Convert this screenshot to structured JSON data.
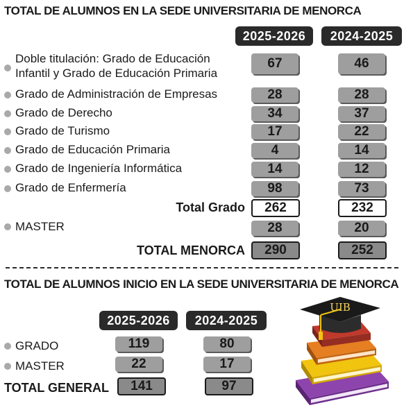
{
  "chart_data": [
    {
      "type": "table",
      "title": "TOTAL DE ALUMNOS EN LA SEDE UNIVERSITARIA DE MENORCA",
      "columns": [
        "2025-2026",
        "2024-2025"
      ],
      "rows": [
        {
          "label": "Doble titulación: Grado de Educación Infantil y Grado de Educación Primaria",
          "label_line1": "Doble titulación: Grado de Educación",
          "label_line2": "Infantil y Grado de Educación Primaria",
          "values": [
            67,
            46
          ]
        },
        {
          "label": "Grado de Administración de Empresas",
          "values": [
            28,
            28
          ]
        },
        {
          "label": "Grado de Derecho",
          "values": [
            34,
            37
          ]
        },
        {
          "label": "Grado de Turismo",
          "values": [
            17,
            22
          ]
        },
        {
          "label": "Grado de Educación Primaria",
          "values": [
            4,
            14
          ]
        },
        {
          "label": "Grado de Ingeniería Informática",
          "values": [
            14,
            12
          ]
        },
        {
          "label": "Grado de Enfermería",
          "values": [
            98,
            73
          ]
        }
      ],
      "total_grado": {
        "label": "Total Grado",
        "values": [
          262,
          232
        ]
      },
      "master": {
        "label": "MASTER",
        "values": [
          28,
          20
        ]
      },
      "total": {
        "label": "TOTAL MENORCA",
        "values": [
          290,
          252
        ]
      }
    },
    {
      "type": "table",
      "title": "TOTAL DE ALUMNOS INICIO EN LA SEDE UNIVERSITARIA DE MENORCA",
      "columns": [
        "2025-2026",
        "2024-2025"
      ],
      "rows": [
        {
          "label": "GRADO",
          "values": [
            119,
            80
          ]
        },
        {
          "label": "MASTER",
          "values": [
            22,
            17
          ]
        }
      ],
      "total": {
        "label": "TOTAL GENERAL",
        "values": [
          141,
          97
        ]
      }
    }
  ],
  "illustration": {
    "cap_text": "UIB",
    "colors": {
      "book_top": "#c0392b",
      "book_mid": "#e67e22",
      "book_low": "#f1c40f",
      "book_base": "#8e44ad",
      "cap": "#1a1a1a",
      "tassel": "#f1c40f"
    }
  }
}
